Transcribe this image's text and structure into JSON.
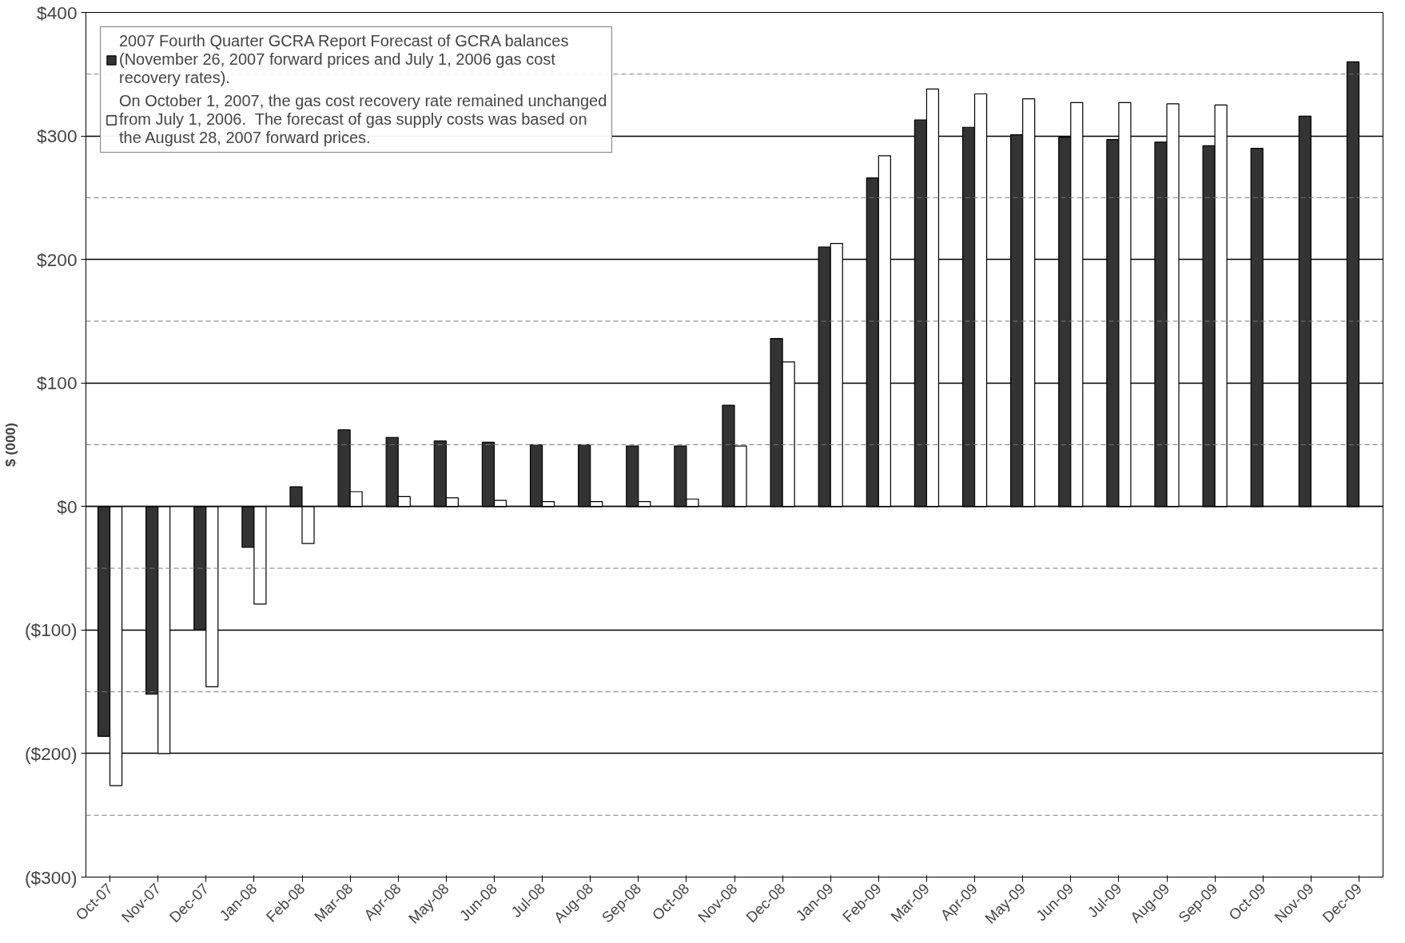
{
  "chart_data": {
    "type": "bar",
    "ylabel": "$ (000)",
    "categories": [
      "Oct-07",
      "Nov-07",
      "Dec-07",
      "Jan-08",
      "Feb-08",
      "Mar-08",
      "Apr-08",
      "May-08",
      "Jun-08",
      "Jul-08",
      "Aug-08",
      "Sep-08",
      "Oct-08",
      "Nov-08",
      "Dec-08",
      "Jan-09",
      "Feb-09",
      "Mar-09",
      "Apr-09",
      "May-09",
      "Jun-09",
      "Jul-09",
      "Aug-09",
      "Sep-09",
      "Oct-09",
      "Nov-09",
      "Dec-09"
    ],
    "series": [
      {
        "name": "2007 Fourth Quarter GCRA Report Forecast of GCRA balances\n(November 26, 2007 forward prices and July 1, 2006 gas cost\nrecovery rates).",
        "color": "#333333",
        "values": [
          -186,
          -152,
          -100,
          -33,
          16,
          62,
          56,
          53,
          52,
          50,
          50,
          49,
          49,
          82,
          136,
          210,
          266,
          313,
          307,
          301,
          299,
          297,
          295,
          292,
          290,
          316,
          360
        ]
      },
      {
        "name": "On October 1, 2007, the gas cost recovery rate remained unchanged\nfrom July 1, 2006.  The forecast of gas supply costs was based on\nthe August 28, 2007 forward prices.",
        "color": "#ffffff",
        "values": [
          -226,
          -200,
          -146,
          -79,
          -30,
          12,
          8,
          7,
          5,
          4,
          4,
          4,
          6,
          49,
          117,
          213,
          284,
          338,
          334,
          330,
          327,
          327,
          326,
          325,
          null,
          null,
          null
        ]
      }
    ],
    "ylim": [
      -300,
      400
    ],
    "yticks": [
      {
        "value": -300,
        "label": "($300)"
      },
      {
        "value": -250,
        "label": null
      },
      {
        "value": -200,
        "label": "($200)"
      },
      {
        "value": -150,
        "label": null
      },
      {
        "value": -100,
        "label": "($100)"
      },
      {
        "value": -50,
        "label": null
      },
      {
        "value": 0,
        "label": "$0"
      },
      {
        "value": 50,
        "label": null
      },
      {
        "value": 100,
        "label": "$100"
      },
      {
        "value": 150,
        "label": null
      },
      {
        "value": 200,
        "label": "$200"
      },
      {
        "value": 250,
        "label": null
      },
      {
        "value": 300,
        "label": "$300"
      },
      {
        "value": 350,
        "label": null
      },
      {
        "value": 400,
        "label": "$400"
      }
    ],
    "grid": "y",
    "legend": "top left"
  }
}
